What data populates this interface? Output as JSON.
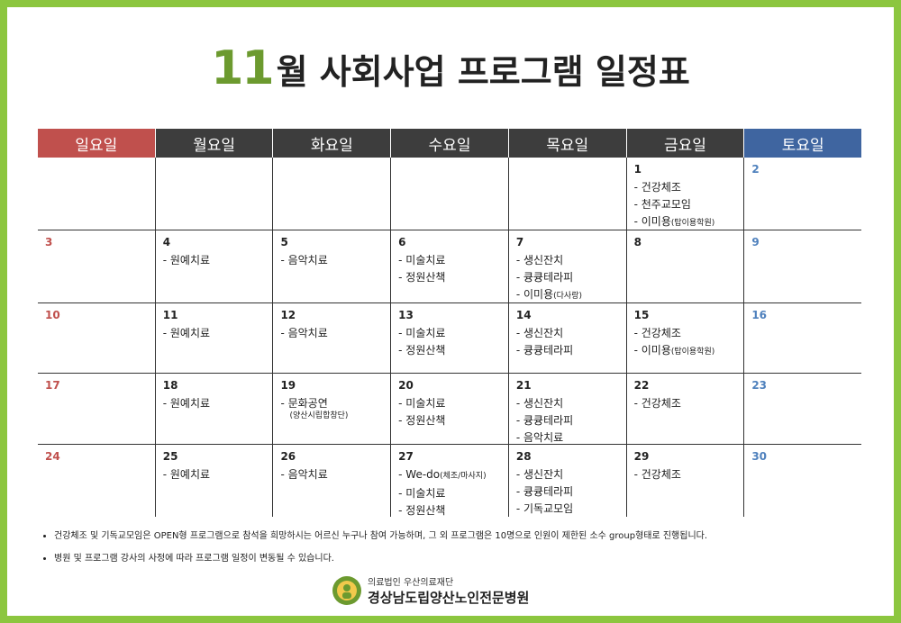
{
  "title_number": "11",
  "title_text": "월 사회사업 프로그램 일정표",
  "weekdays": [
    "일요일",
    "월요일",
    "화요일",
    "수요일",
    "목요일",
    "금요일",
    "토요일"
  ],
  "weeks": [
    [
      {
        "day": null,
        "items": []
      },
      {
        "day": null,
        "items": []
      },
      {
        "day": null,
        "items": []
      },
      {
        "day": null,
        "items": []
      },
      {
        "day": null,
        "items": []
      },
      {
        "day": "1",
        "items": [
          {
            "text": "- 건강체조"
          },
          {
            "text": "- 천주교모임"
          },
          {
            "text": "- 이미용",
            "note": "(탑이용학원)"
          }
        ]
      },
      {
        "day": "2",
        "items": []
      }
    ],
    [
      {
        "day": "3",
        "items": []
      },
      {
        "day": "4",
        "items": [
          {
            "text": "- 원예치료"
          }
        ]
      },
      {
        "day": "5",
        "items": [
          {
            "text": "- 음악치료"
          }
        ]
      },
      {
        "day": "6",
        "items": [
          {
            "text": "- 미술치료"
          },
          {
            "text": "- 정원산책"
          }
        ]
      },
      {
        "day": "7",
        "items": [
          {
            "text": "- 생신잔치"
          },
          {
            "text": "- 큥큥테라피"
          },
          {
            "text": "- 이미용",
            "note": "(다사랑)"
          }
        ]
      },
      {
        "day": "8",
        "items": []
      },
      {
        "day": "9",
        "items": []
      }
    ],
    [
      {
        "day": "10",
        "items": []
      },
      {
        "day": "11",
        "items": [
          {
            "text": "- 원예치료"
          }
        ]
      },
      {
        "day": "12",
        "items": [
          {
            "text": "- 음악치료"
          }
        ]
      },
      {
        "day": "13",
        "items": [
          {
            "text": "- 미술치료"
          },
          {
            "text": "- 정원산책"
          }
        ]
      },
      {
        "day": "14",
        "items": [
          {
            "text": "- 생신잔치"
          },
          {
            "text": "- 큥큥테라피"
          }
        ]
      },
      {
        "day": "15",
        "items": [
          {
            "text": "- 건강체조"
          },
          {
            "text": "- 이미용",
            "note": "(탑이용학원)"
          }
        ]
      },
      {
        "day": "16",
        "items": []
      }
    ],
    [
      {
        "day": "17",
        "items": []
      },
      {
        "day": "18",
        "items": [
          {
            "text": "- 원예치료"
          }
        ]
      },
      {
        "day": "19",
        "items": [
          {
            "text": "- 문화공연",
            "subnote": "(양산시립합창단)"
          }
        ]
      },
      {
        "day": "20",
        "items": [
          {
            "text": "- 미술치료"
          },
          {
            "text": "- 정원산책"
          }
        ]
      },
      {
        "day": "21",
        "items": [
          {
            "text": "- 생신잔치"
          },
          {
            "text": "- 큥큥테라피"
          },
          {
            "text": "- 음악치료"
          }
        ]
      },
      {
        "day": "22",
        "items": [
          {
            "text": "- 건강체조"
          }
        ]
      },
      {
        "day": "23",
        "items": []
      }
    ],
    [
      {
        "day": "24",
        "items": []
      },
      {
        "day": "25",
        "items": [
          {
            "text": "- 원예치료"
          }
        ]
      },
      {
        "day": "26",
        "items": [
          {
            "text": "- 음악치료"
          }
        ]
      },
      {
        "day": "27",
        "items": [
          {
            "text": "- We-do",
            "note": "(체조/마사지)"
          },
          {
            "text": "- 미술치료"
          },
          {
            "text": "- 정원산책"
          }
        ]
      },
      {
        "day": "28",
        "items": [
          {
            "text": "- 생신잔치"
          },
          {
            "text": "- 큥큥테라피"
          },
          {
            "text": "- 기독교모임"
          }
        ]
      },
      {
        "day": "29",
        "items": [
          {
            "text": "- 건강체조"
          }
        ]
      },
      {
        "day": "30",
        "items": []
      }
    ]
  ],
  "notes": [
    "건강체조 및 기독교모임은 OPEN형 프로그램으로 참석을 희망하시는 어르신 누구나 참여 가능하며, 그 외 프로그램은 10명으로 인원이 제한된 소수 group형태로 진행됩니다.",
    "병원 및 프로그램 강사의 사정에 따라 프로그램 일정이 변동될 수 있습니다."
  ],
  "footer": {
    "org": "의료법인 우산의료재단",
    "name": "경상남도립양산노인전문병원"
  }
}
